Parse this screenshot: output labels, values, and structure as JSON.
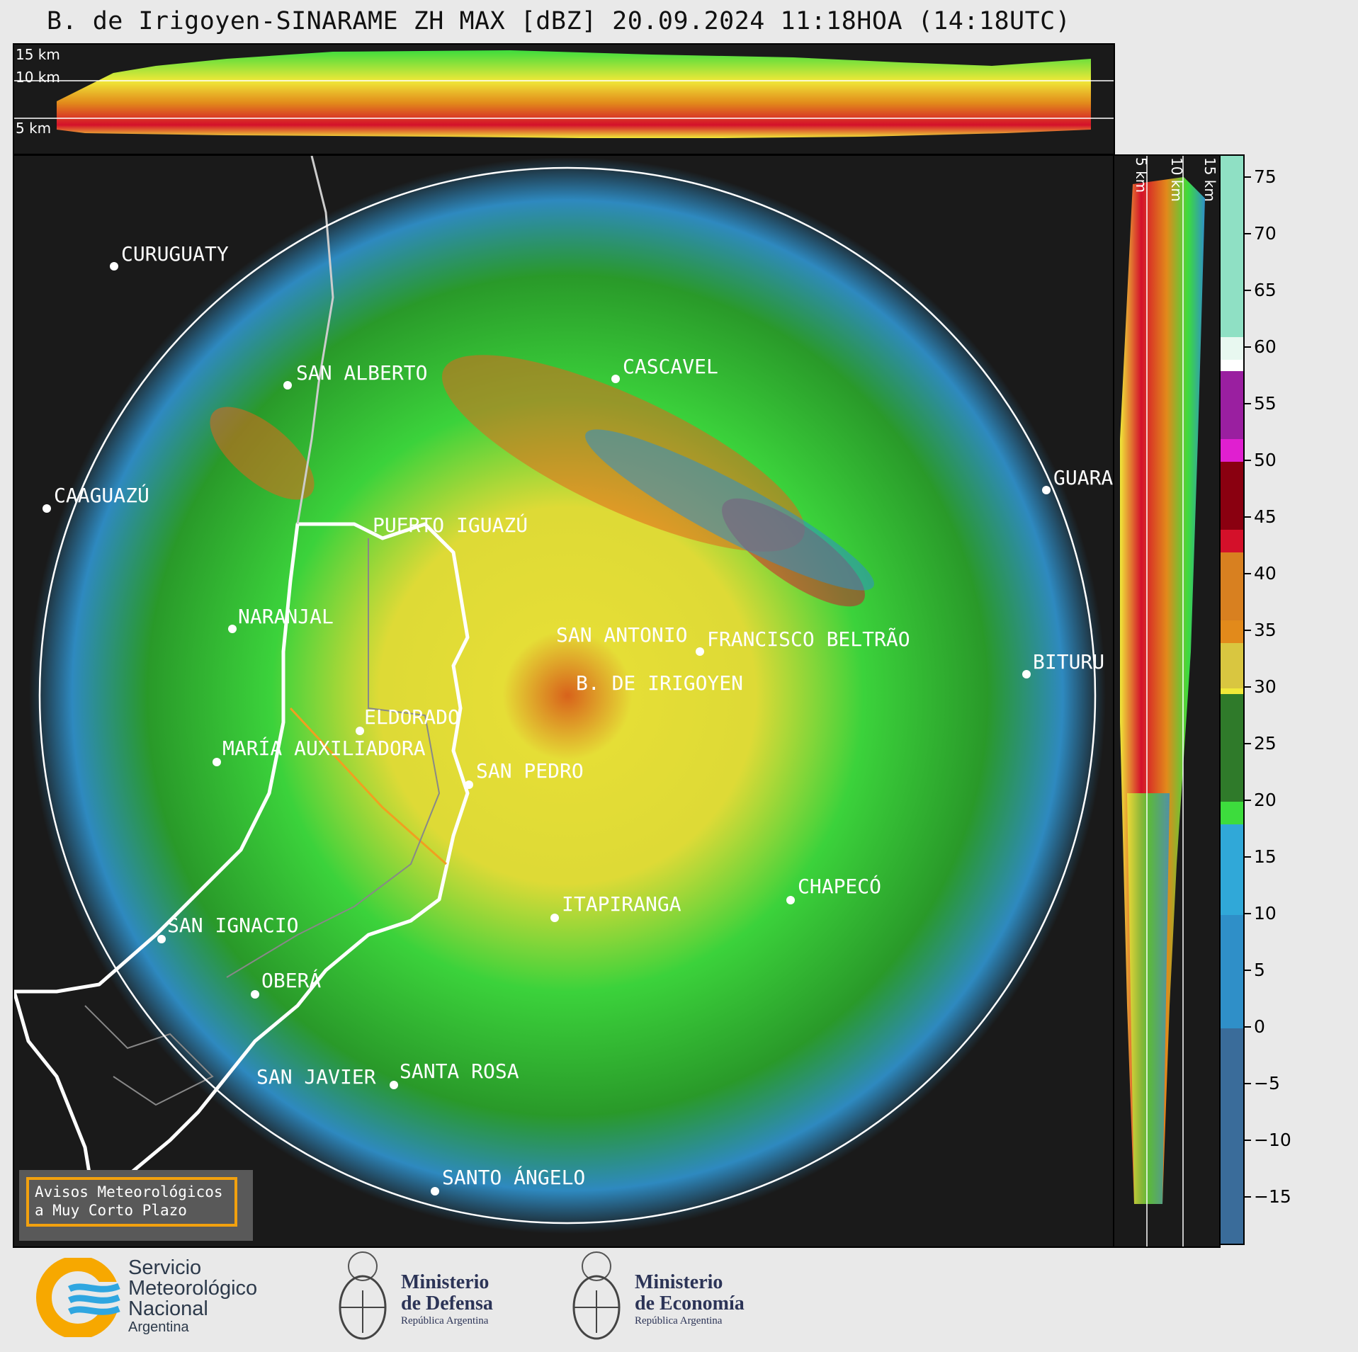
{
  "title": "B. de Irigoyen-SINARAME ZH MAX [dBZ] 20.09.2024 11:18HOA (14:18UTC)",
  "height_labels": [
    "15 km",
    "10 km",
    "5 km"
  ],
  "colorbar": {
    "ticks": [
      "75",
      "70",
      "65",
      "60",
      "55",
      "50",
      "45",
      "40",
      "35",
      "30",
      "25",
      "20",
      "15",
      "10",
      "5",
      "0",
      "−10",
      "−15"
    ],
    "tick_values": [
      75,
      70,
      65,
      60,
      55,
      50,
      45,
      40,
      35,
      30,
      25,
      20,
      15,
      10,
      5,
      0,
      -10,
      -15
    ],
    "minus5": "−5",
    "range": [
      -19,
      77
    ],
    "colors": {
      "low": "#3a3f6b",
      "blue": "#2f8fc8",
      "green": "#3ddc3d",
      "yellow": "#f0e838",
      "orange": "#e28a1b",
      "red": "#d4102a",
      "magenta": "#e01fd0",
      "white": "#ffffff",
      "mint": "#8fe0c4"
    }
  },
  "cities": [
    {
      "name": "CURUGUATY"
    },
    {
      "name": "SAN ALBERTO"
    },
    {
      "name": "CASCAVEL"
    },
    {
      "name": "CAAGUAZÚ"
    },
    {
      "name": "GUARA"
    },
    {
      "name": "PUERTO IGUAZÚ"
    },
    {
      "name": "NARANJAL"
    },
    {
      "name": "SAN ANTONIO"
    },
    {
      "name": "FRANCISCO BELTRÃO"
    },
    {
      "name": "BITURU"
    },
    {
      "name": "B. DE IRIGOYEN"
    },
    {
      "name": "ELDORADO"
    },
    {
      "name": "MARÍA AUXILIADORA"
    },
    {
      "name": "SAN PEDRO"
    },
    {
      "name": "CHAPECÓ"
    },
    {
      "name": "ITAPIRANGA"
    },
    {
      "name": "SAN IGNACIO"
    },
    {
      "name": "OBERÁ"
    },
    {
      "name": "SAN JAVIER"
    },
    {
      "name": "SANTA ROSA"
    },
    {
      "name": "SANTO ÁNGELO"
    }
  ],
  "aviso": {
    "line1": "Avisos Meteorológicos",
    "line2": "a Muy Corto Plazo"
  },
  "logos": {
    "smn": {
      "line1": "Servicio",
      "line2": "Meteorológico",
      "line3": "Nacional",
      "line4": "Argentina"
    },
    "defensa": {
      "line1": "Ministerio",
      "line2": "de Defensa",
      "line3": "República Argentina"
    },
    "economia": {
      "line1": "Ministerio",
      "line2": "de Economía",
      "line3": "República Argentina"
    }
  }
}
